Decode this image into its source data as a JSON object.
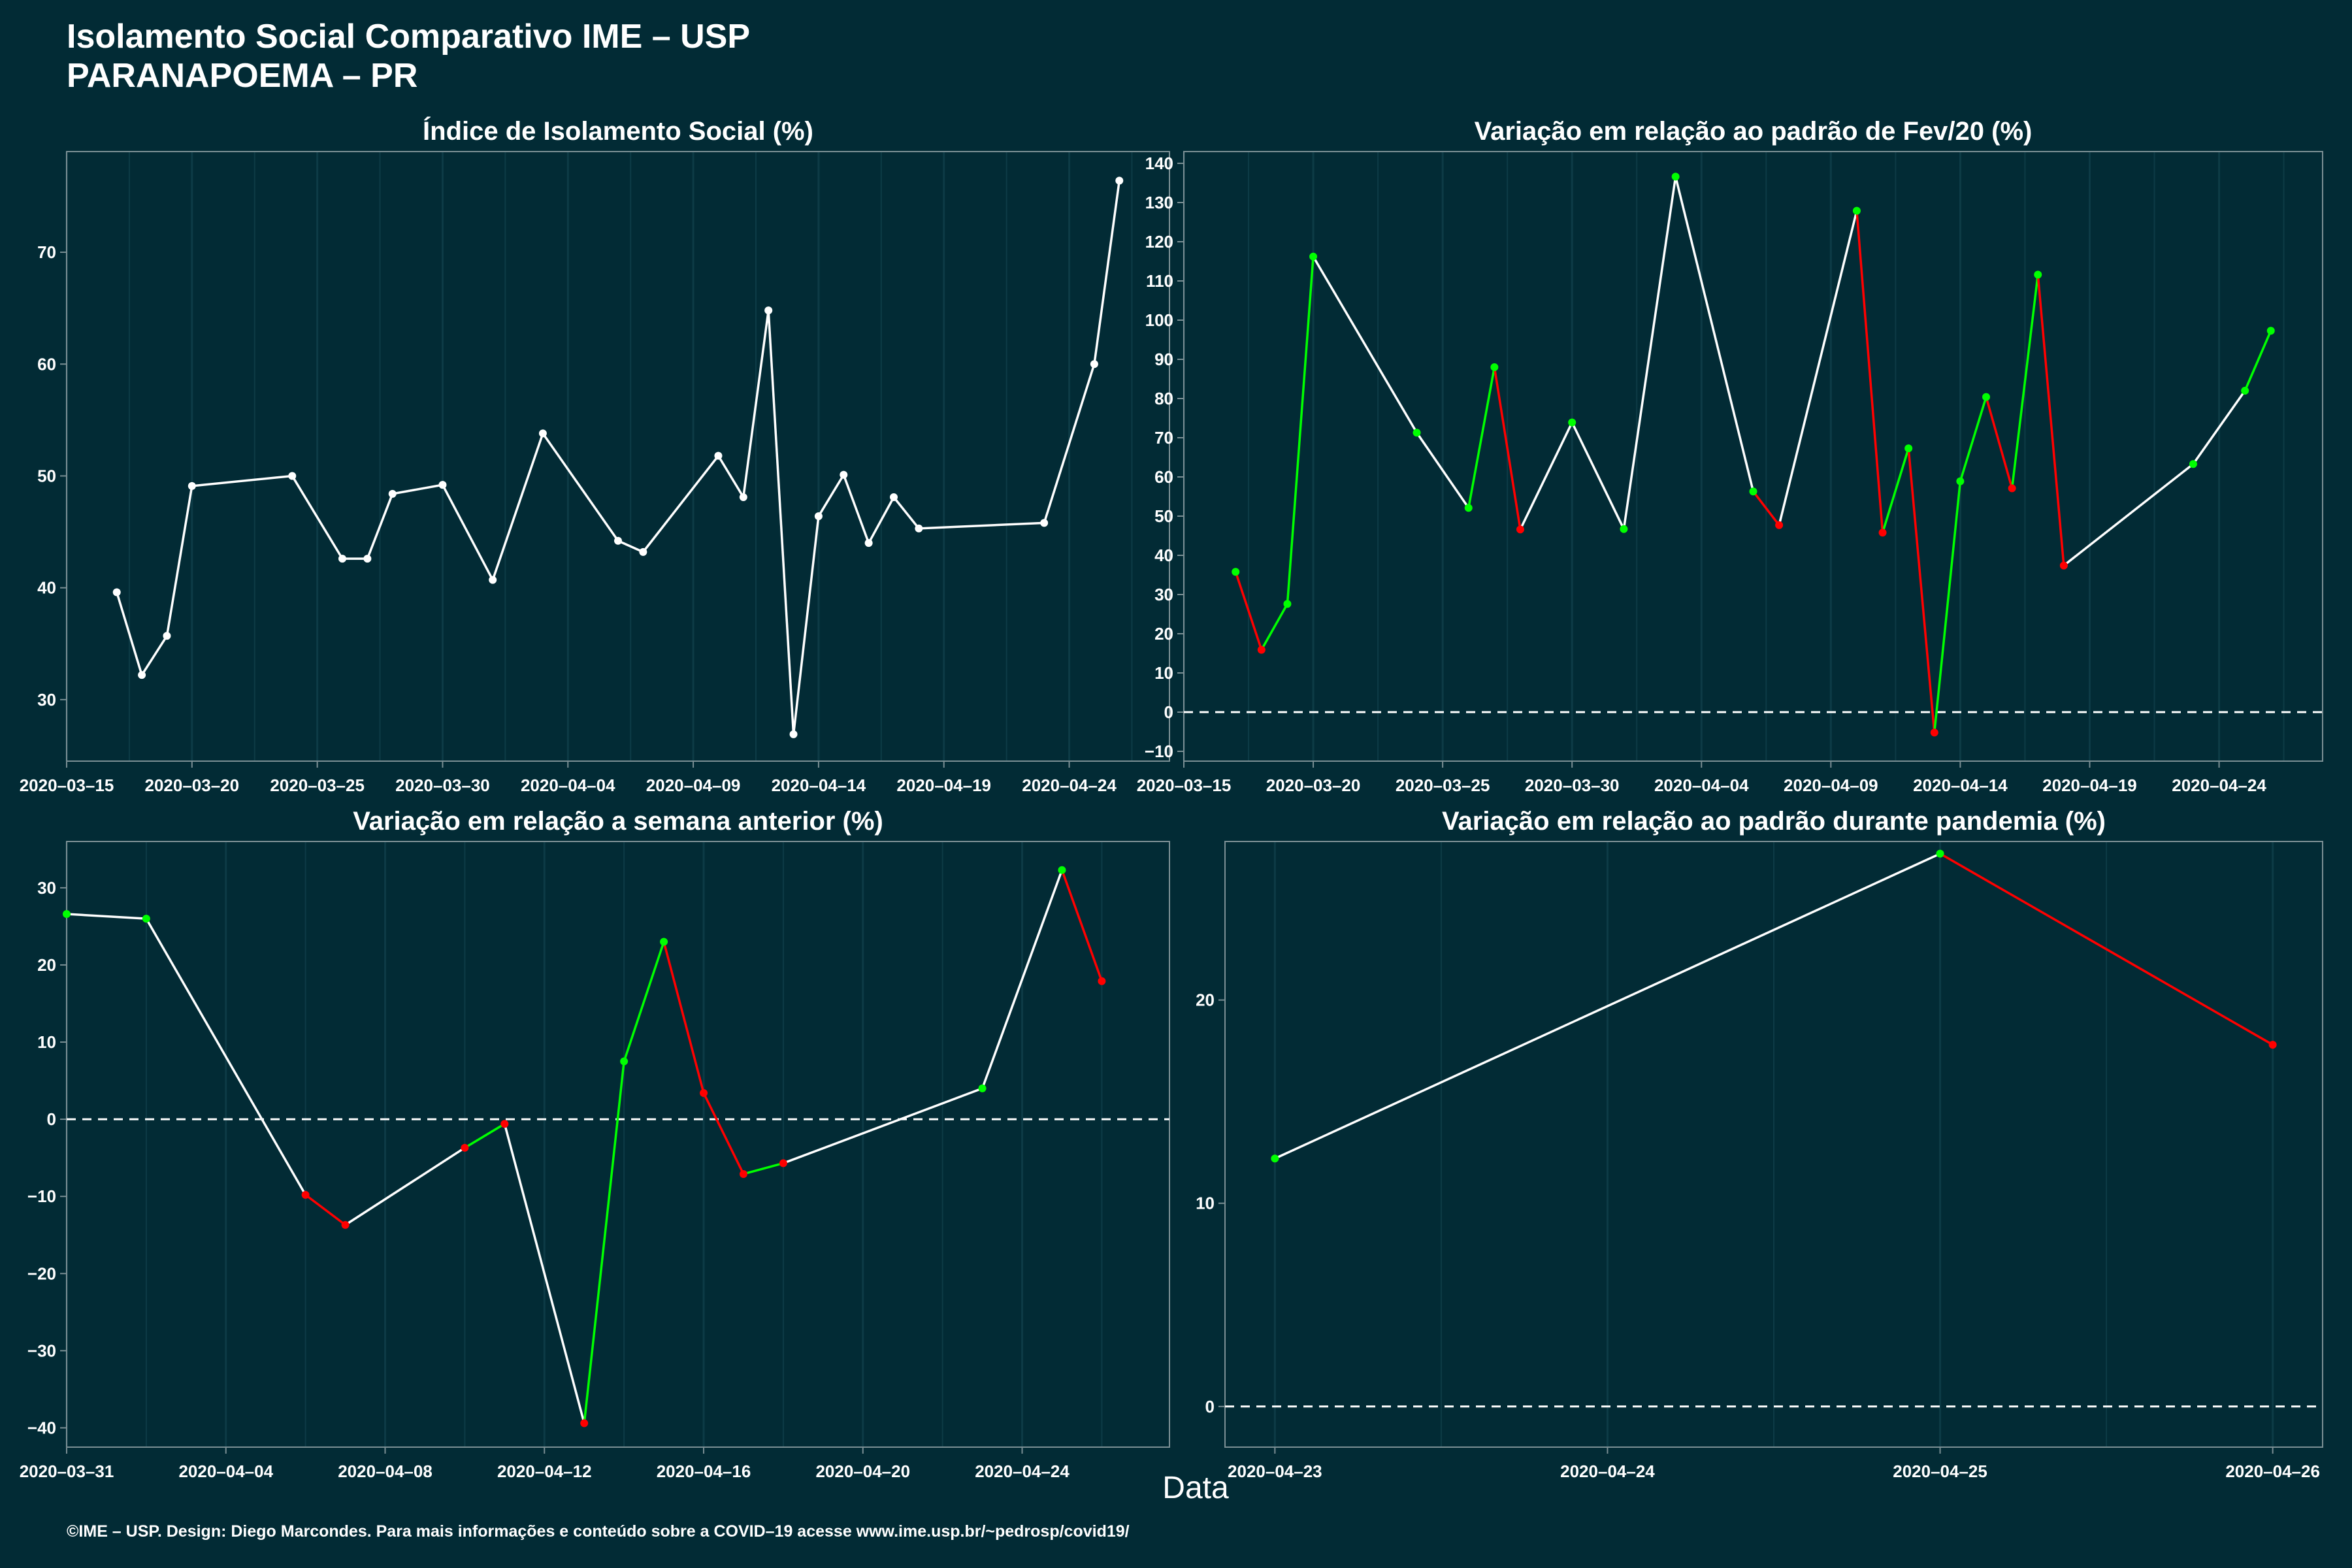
{
  "header": {
    "title_line1": "Isolamento Social Comparativo IME – USP",
    "title_line2": "PARANAPOEMA – PR"
  },
  "x_axis_title": "Data",
  "footer": "©IME – USP. Design: Diego Marcondes. Para mais informações e conteúdo sobre a COVID–19 acesse www.ime.usp.br/~pedrosp/covid19/",
  "colors": {
    "background": "#022b35",
    "line_default": "#ffffff",
    "positive": "#00ff00",
    "negative": "#ff0000",
    "grid": "#0d3b46",
    "panel_border": "#7b8f94"
  },
  "chart_data": [
    {
      "type": "line",
      "title": "Índice de Isolamento Social (%)",
      "x_type": "date",
      "xlim": [
        "2020-03-15",
        "2020-04-28"
      ],
      "ylim": [
        24.5,
        79
      ],
      "yticks": [
        30,
        40,
        50,
        60,
        70
      ],
      "xticks": [
        "2020-03-15",
        "2020-03-20",
        "2020-03-25",
        "2020-03-30",
        "2020-04-04",
        "2020-04-09",
        "2020-04-14",
        "2020-04-19",
        "2020-04-24"
      ],
      "color_mode": "single",
      "zero_line": false,
      "x": [
        "2020-03-17",
        "2020-03-18",
        "2020-03-19",
        "2020-03-20",
        "2020-03-24",
        "2020-03-26",
        "2020-03-27",
        "2020-03-28",
        "2020-03-30",
        "2020-04-01",
        "2020-04-03",
        "2020-04-06",
        "2020-04-07",
        "2020-04-10",
        "2020-04-11",
        "2020-04-12",
        "2020-04-13",
        "2020-04-14",
        "2020-04-15",
        "2020-04-16",
        "2020-04-17",
        "2020-04-18",
        "2020-04-23",
        "2020-04-25",
        "2020-04-26"
      ],
      "values": [
        39.6,
        32.2,
        35.7,
        49.1,
        50.0,
        42.6,
        42.6,
        48.4,
        49.2,
        40.7,
        53.8,
        44.2,
        43.2,
        51.8,
        48.1,
        64.8,
        26.9,
        46.4,
        50.1,
        44.0,
        48.1,
        45.3,
        45.8,
        60.0,
        76.4
      ]
    },
    {
      "type": "line",
      "title": "Variação em relação ao padrão de Fev/20 (%)",
      "x_type": "date",
      "xlim": [
        "2020-03-15",
        "2020-04-28"
      ],
      "ylim": [
        -12.5,
        143
      ],
      "yticks": [
        -10,
        0,
        10,
        20,
        30,
        40,
        50,
        60,
        70,
        80,
        90,
        100,
        110,
        120,
        130,
        140
      ],
      "xticks": [
        "2020-03-15",
        "2020-03-20",
        "2020-03-25",
        "2020-03-30",
        "2020-04-04",
        "2020-04-09",
        "2020-04-14",
        "2020-04-19",
        "2020-04-24"
      ],
      "color_mode": "trend",
      "zero_line": true,
      "x": [
        "2020-03-17",
        "2020-03-18",
        "2020-03-19",
        "2020-03-20",
        "2020-03-24",
        "2020-03-26",
        "2020-03-27",
        "2020-03-28",
        "2020-03-30",
        "2020-04-01",
        "2020-04-03",
        "2020-04-06",
        "2020-04-07",
        "2020-04-10",
        "2020-04-11",
        "2020-04-12",
        "2020-04-13",
        "2020-04-14",
        "2020-04-15",
        "2020-04-16",
        "2020-04-17",
        "2020-04-18",
        "2020-04-23",
        "2020-04-25",
        "2020-04-26"
      ],
      "values": [
        35.8,
        15.9,
        27.6,
        116.2,
        71.3,
        52.1,
        88.0,
        46.6,
        73.9,
        46.7,
        136.6,
        56.3,
        47.7,
        127.9,
        45.8,
        67.3,
        -5.2,
        58.9,
        80.4,
        57.1,
        111.6,
        37.4,
        63.3,
        82.0,
        97.3
      ]
    },
    {
      "type": "line",
      "title": "Variação em relação a semana anterior (%)",
      "x_type": "date",
      "xlim": [
        "2020-03-31",
        "2020-04-27.7"
      ],
      "ylim": [
        -42.5,
        36
      ],
      "yticks": [
        -40,
        -30,
        -20,
        -10,
        0,
        10,
        20,
        30
      ],
      "xticks": [
        "2020-03-31",
        "2020-04-04",
        "2020-04-08",
        "2020-04-12",
        "2020-04-16",
        "2020-04-20",
        "2020-04-24"
      ],
      "color_mode": "trend",
      "zero_line": true,
      "x": [
        "2020-03-31",
        "2020-04-02",
        "2020-04-06",
        "2020-04-07",
        "2020-04-10",
        "2020-04-11",
        "2020-04-13",
        "2020-04-14",
        "2020-04-15",
        "2020-04-16",
        "2020-04-17",
        "2020-04-18",
        "2020-04-23",
        "2020-04-25",
        "2020-04-26"
      ],
      "values": [
        26.6,
        26.0,
        -9.8,
        -13.7,
        -3.7,
        -0.6,
        -39.4,
        7.5,
        23.0,
        3.4,
        -7.1,
        -5.7,
        4.0,
        32.3,
        17.9
      ]
    },
    {
      "type": "line",
      "title": "Variação em relação ao padrão durante pandemia (%)",
      "x_type": "date",
      "xlim": [
        "2020-04-22.85",
        "2020-04-26.15"
      ],
      "ylim": [
        -2,
        27.8
      ],
      "yticks": [
        0,
        10,
        20
      ],
      "xticks": [
        "2020-04-23",
        "2020-04-24",
        "2020-04-25",
        "2020-04-26"
      ],
      "color_mode": "trend",
      "zero_line": true,
      "x": [
        "2020-04-23",
        "2020-04-25",
        "2020-04-26"
      ],
      "values": [
        12.2,
        27.2,
        17.8
      ]
    }
  ]
}
